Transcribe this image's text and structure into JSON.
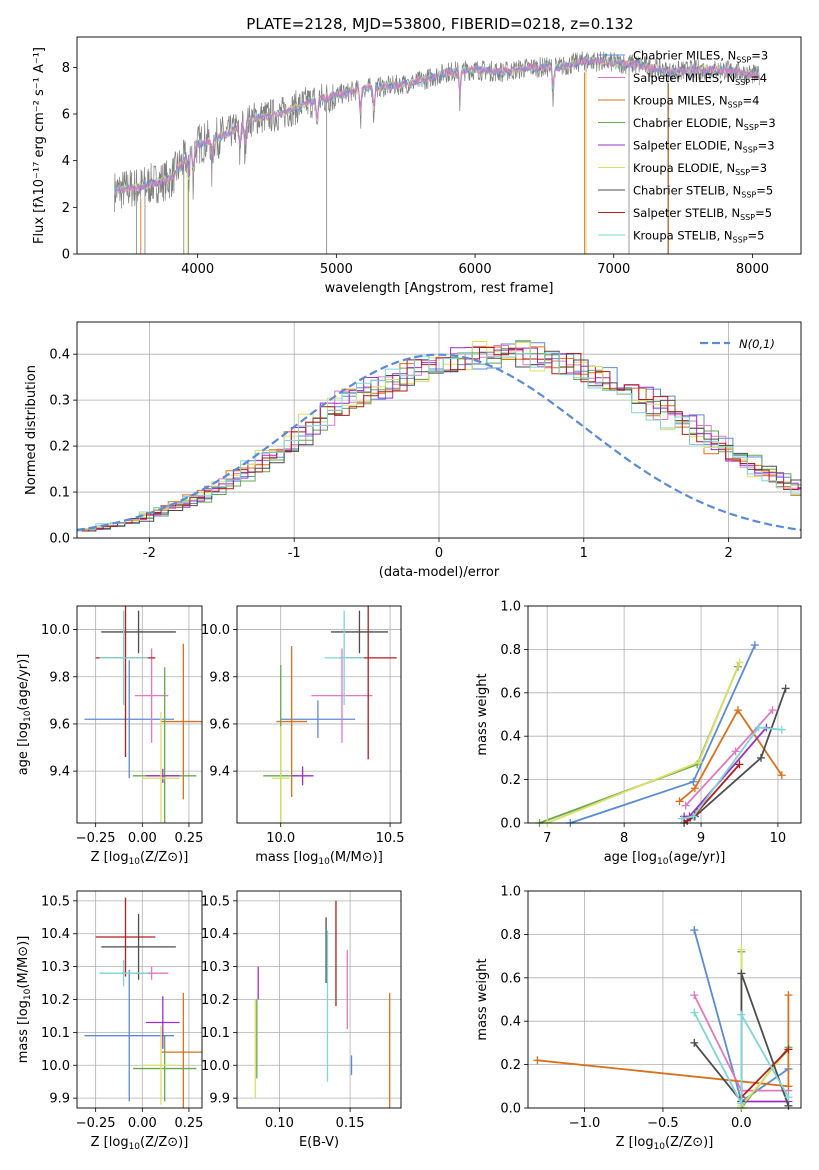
{
  "figure_title": "PLATE=2128, MJD=53800, FIBERID=0218, z=0.132",
  "colors": {
    "chabrier_miles": "#5b8bd6",
    "salpeter_miles": "#e377c2",
    "kroupa_miles": "#d9711d",
    "chabrier_elodie": "#6aa84f",
    "salpeter_elodie": "#9b30c8",
    "kroupa_elodie": "#dbe066",
    "chabrier_stelib": "#4d4d4d",
    "salpeter_stelib": "#b01e1e",
    "kroupa_stelib": "#7fd6d6",
    "data": "#808080",
    "normal": "#5b8bd6"
  },
  "legend_spectrum": [
    {
      "key": "chabrier_miles",
      "label": "Chabrier MILES, N",
      "sub": "SSP",
      "suffix": "=3"
    },
    {
      "key": "salpeter_miles",
      "label": "Salpeter MILES, N",
      "sub": "SSP",
      "suffix": "=4"
    },
    {
      "key": "kroupa_miles",
      "label": "Kroupa MILES, N",
      "sub": "SSP",
      "suffix": "=4"
    },
    {
      "key": "chabrier_elodie",
      "label": "Chabrier ELODIE, N",
      "sub": "SSP",
      "suffix": "=3"
    },
    {
      "key": "salpeter_elodie",
      "label": "Salpeter ELODIE, N",
      "sub": "SSP",
      "suffix": "=3"
    },
    {
      "key": "kroupa_elodie",
      "label": "Kroupa ELODIE, N",
      "sub": "SSP",
      "suffix": "=3"
    },
    {
      "key": "chabrier_stelib",
      "label": "Chabrier STELIB, N",
      "sub": "SSP",
      "suffix": "=5"
    },
    {
      "key": "salpeter_stelib",
      "label": "Salpeter STELIB, N",
      "sub": "SSP",
      "suffix": "=5"
    },
    {
      "key": "kroupa_stelib",
      "label": "Kroupa STELIB, N",
      "sub": "SSP",
      "suffix": "=5"
    }
  ],
  "chart_data": [
    {
      "id": "spectrum",
      "type": "line",
      "xlabel": "wavelength [Angstrom, rest frame]",
      "ylabel": "Flux [fλ10⁻¹⁷ erg cm⁻² s⁻¹ A⁻¹]",
      "xlim": [
        3130,
        8350
      ],
      "ylim": [
        0,
        9.3
      ],
      "xticks": [
        4000,
        5000,
        6000,
        7000,
        8000
      ],
      "yticks": [
        0,
        2,
        4,
        6,
        8
      ],
      "continuum": [
        [
          3400,
          2.7
        ],
        [
          3600,
          2.9
        ],
        [
          3800,
          3.2
        ],
        [
          3900,
          4.0
        ],
        [
          4000,
          4.7
        ],
        [
          4200,
          5.1
        ],
        [
          4400,
          5.8
        ],
        [
          4600,
          6.0
        ],
        [
          4800,
          6.5
        ],
        [
          5000,
          6.8
        ],
        [
          5200,
          7.1
        ],
        [
          5400,
          7.2
        ],
        [
          5600,
          7.4
        ],
        [
          5800,
          7.8
        ],
        [
          6000,
          7.9
        ],
        [
          6200,
          7.8
        ],
        [
          6400,
          8.0
        ],
        [
          6600,
          8.0
        ],
        [
          6800,
          8.3
        ],
        [
          7000,
          8.2
        ],
        [
          7200,
          8.1
        ],
        [
          7400,
          7.8
        ],
        [
          7600,
          7.9
        ],
        [
          7800,
          7.9
        ],
        [
          8000,
          7.7
        ],
        [
          8050,
          7.6
        ]
      ],
      "absorption_lines": [
        3934,
        3968,
        4102,
        4304,
        4341,
        4861,
        5175,
        5270,
        5890,
        6563
      ]
    },
    {
      "id": "residuals",
      "type": "line",
      "xlabel": "(data-model)/error",
      "ylabel": "Normed distribution",
      "xlim": [
        -2.5,
        2.5
      ],
      "ylim": [
        0,
        0.47
      ],
      "xticks": [
        -2,
        -1,
        0,
        1,
        2
      ],
      "yticks": [
        0,
        0.1,
        0.2,
        0.3,
        0.4
      ],
      "bin_width": 0.1,
      "legend": "N(0,1)",
      "series_base": [
        0.017,
        0.02,
        0.028,
        0.035,
        0.04,
        0.052,
        0.064,
        0.074,
        0.087,
        0.102,
        0.118,
        0.135,
        0.155,
        0.176,
        0.198,
        0.222,
        0.246,
        0.27,
        0.295,
        0.312,
        0.322,
        0.334,
        0.348,
        0.36,
        0.37,
        0.38,
        0.39,
        0.395,
        0.399,
        0.403,
        0.4,
        0.396,
        0.39,
        0.382,
        0.372,
        0.36,
        0.347,
        0.333,
        0.317,
        0.3,
        0.282,
        0.263,
        0.243,
        0.223,
        0.204,
        0.185,
        0.166,
        0.148,
        0.131,
        0.115,
        0.1,
        0.088,
        0.076,
        0.066,
        0.057,
        0.049,
        0.042,
        0.036,
        0.03,
        0.026
      ]
    },
    {
      "id": "age_vs_Z",
      "type": "scatter",
      "xlabel": "Z [log10(Z/Z⊙)]",
      "ylabel": "age  [log10(age/yr)]",
      "xlim": [
        -0.35,
        0.32
      ],
      "ylim": [
        9.18,
        10.1
      ],
      "xticks": [
        -0.25,
        0,
        0.25
      ],
      "xticklabels": [
        "−0.25",
        "0.00",
        "0.25"
      ],
      "yticks": [
        9.4,
        9.6,
        9.8,
        10.0
      ],
      "points": [
        {
          "key": "chabrier_miles",
          "x": -0.07,
          "y": 9.62,
          "xerr": 0.24,
          "yerr": 0.25
        },
        {
          "key": "salpeter_miles",
          "x": 0.05,
          "y": 9.72,
          "xerr": 0.09,
          "yerr": 0.2
        },
        {
          "key": "kroupa_miles",
          "x": 0.22,
          "y": 9.61,
          "xerr": 0.12,
          "yerr": 0.33
        },
        {
          "key": "chabrier_elodie",
          "x": 0.12,
          "y": 9.38,
          "xerr": 0.17,
          "yerr": 0.46
        },
        {
          "key": "salpeter_elodie",
          "x": 0.11,
          "y": 9.38,
          "xerr": 0.09,
          "yerr": 0.03
        },
        {
          "key": "kroupa_elodie",
          "x": 0.1,
          "y": 9.37,
          "xerr": 0.1,
          "yerr": 0.28
        },
        {
          "key": "chabrier_stelib",
          "x": -0.02,
          "y": 9.99,
          "xerr": 0.2,
          "yerr": 0.09
        },
        {
          "key": "salpeter_stelib",
          "x": -0.09,
          "y": 9.88,
          "xerr": 0.16,
          "yerr": 0.42
        },
        {
          "key": "kroupa_stelib",
          "x": -0.1,
          "y": 9.88,
          "xerr": 0.13,
          "yerr": 0.2
        }
      ]
    },
    {
      "id": "age_vs_mass",
      "type": "scatter",
      "xlabel": "mass [log10(M/M⊙)]",
      "ylabel": "",
      "xlim": [
        9.8,
        10.55
      ],
      "ylim": [
        9.18,
        10.1
      ],
      "xticks": [
        10.0,
        10.5
      ],
      "xticklabels": [
        "10.0",
        "10.5"
      ],
      "yticks": [
        9.4,
        9.6,
        9.8,
        10.0
      ],
      "points": [
        {
          "key": "chabrier_miles",
          "x": 10.17,
          "y": 9.62,
          "xerr": 0.17,
          "yerr": 0.08
        },
        {
          "key": "salpeter_miles",
          "x": 10.28,
          "y": 9.72,
          "xerr": 0.14,
          "yerr": 0.2
        },
        {
          "key": "kroupa_miles",
          "x": 10.05,
          "y": 9.61,
          "xerr": 0.07,
          "yerr": 0.32
        },
        {
          "key": "chabrier_elodie",
          "x": 10.0,
          "y": 9.38,
          "xerr": 0.08,
          "yerr": 0.47
        },
        {
          "key": "salpeter_elodie",
          "x": 10.1,
          "y": 9.38,
          "xerr": 0.05,
          "yerr": 0.04
        },
        {
          "key": "kroupa_elodie",
          "x": 10.0,
          "y": 9.37,
          "xerr": 0.04,
          "yerr": 0.22
        },
        {
          "key": "chabrier_stelib",
          "x": 10.36,
          "y": 9.99,
          "xerr": 0.13,
          "yerr": 0.09
        },
        {
          "key": "salpeter_stelib",
          "x": 10.4,
          "y": 9.88,
          "xerr": 0.13,
          "yerr": 0.43
        },
        {
          "key": "kroupa_stelib",
          "x": 10.29,
          "y": 9.88,
          "xerr": 0.09,
          "yerr": 0.2
        }
      ]
    },
    {
      "id": "weight_vs_age",
      "type": "line",
      "xlabel": "age  [log10(age/yr)]",
      "ylabel": "mass weight",
      "xlim": [
        6.75,
        10.3
      ],
      "ylim": [
        0,
        1
      ],
      "xticks": [
        7,
        8,
        9,
        10
      ],
      "yticks": [
        0,
        0.2,
        0.4,
        0.6,
        0.8,
        1.0
      ],
      "series": [
        {
          "key": "chabrier_miles",
          "points": [
            [
              7.3,
              0.0
            ],
            [
              8.9,
              0.19
            ],
            [
              9.7,
              0.82
            ]
          ]
        },
        {
          "key": "salpeter_miles",
          "points": [
            [
              8.8,
              0.08
            ],
            [
              9.45,
              0.33
            ],
            [
              9.93,
              0.52
            ]
          ]
        },
        {
          "key": "kroupa_miles",
          "points": [
            [
              8.72,
              0.1
            ],
            [
              8.92,
              0.16
            ],
            [
              9.48,
              0.52
            ],
            [
              10.05,
              0.22
            ]
          ]
        },
        {
          "key": "chabrier_elodie",
          "points": [
            [
              6.9,
              0.0
            ],
            [
              8.95,
              0.27
            ],
            [
              9.48,
              0.72
            ]
          ]
        },
        {
          "key": "salpeter_elodie",
          "points": [
            [
              8.78,
              0.03
            ],
            [
              8.85,
              0.03
            ],
            [
              9.85,
              0.44
            ]
          ]
        },
        {
          "key": "kroupa_elodie",
          "points": [
            [
              7.0,
              0.0
            ],
            [
              8.97,
              0.28
            ],
            [
              9.5,
              0.74
            ]
          ]
        },
        {
          "key": "chabrier_stelib",
          "points": [
            [
              8.78,
              0.0
            ],
            [
              8.92,
              0.03
            ],
            [
              9.78,
              0.3
            ],
            [
              10.1,
              0.62
            ]
          ]
        },
        {
          "key": "salpeter_stelib",
          "points": [
            [
              8.82,
              0.01
            ],
            [
              8.95,
              0.05
            ],
            [
              9.5,
              0.27
            ]
          ]
        },
        {
          "key": "kroupa_stelib",
          "points": [
            [
              8.75,
              0.02
            ],
            [
              8.9,
              0.03
            ],
            [
              9.75,
              0.44
            ],
            [
              10.05,
              0.43
            ]
          ]
        }
      ]
    },
    {
      "id": "mass_vs_Z",
      "type": "scatter",
      "xlabel": "Z [log10(Z/Z⊙)]",
      "ylabel": "mass [log10(M/M⊙)]",
      "xlim": [
        -0.35,
        0.32
      ],
      "ylim": [
        9.87,
        10.53
      ],
      "xticks": [
        -0.25,
        0,
        0.25
      ],
      "xticklabels": [
        "−0.25",
        "0.00",
        "0.25"
      ],
      "yticks": [
        9.9,
        10.0,
        10.1,
        10.2,
        10.3,
        10.4,
        10.5
      ],
      "points": [
        {
          "key": "chabrier_miles",
          "x": -0.07,
          "y": 10.09,
          "xerr": 0.24,
          "yerr": 0.2
        },
        {
          "key": "salpeter_miles",
          "x": 0.05,
          "y": 10.28,
          "xerr": 0.09,
          "yerr": 0.02
        },
        {
          "key": "kroupa_miles",
          "x": 0.22,
          "y": 10.04,
          "xerr": 0.12,
          "yerr": 0.18
        },
        {
          "key": "chabrier_elodie",
          "x": 0.12,
          "y": 9.99,
          "xerr": 0.17,
          "yerr": 0.1
        },
        {
          "key": "salpeter_elodie",
          "x": 0.11,
          "y": 10.13,
          "xerr": 0.09,
          "yerr": 0.08
        },
        {
          "key": "kroupa_elodie",
          "x": 0.1,
          "y": 10.0,
          "xerr": 0.1,
          "yerr": 0.12
        },
        {
          "key": "chabrier_stelib",
          "x": -0.02,
          "y": 10.36,
          "xerr": 0.2,
          "yerr": 0.1
        },
        {
          "key": "salpeter_stelib",
          "x": -0.09,
          "y": 10.39,
          "xerr": 0.16,
          "yerr": 0.12
        },
        {
          "key": "kroupa_stelib",
          "x": -0.1,
          "y": 10.28,
          "xerr": 0.13,
          "yerr": 0.04
        }
      ]
    },
    {
      "id": "mass_vs_ebv",
      "type": "scatter",
      "xlabel": "E(B-V)",
      "ylabel": "",
      "xlim": [
        0.07,
        0.186
      ],
      "ylim": [
        9.87,
        10.53
      ],
      "xticks": [
        0.1,
        0.15
      ],
      "xticklabels": [
        "0.10",
        "0.15"
      ],
      "yticks": [
        9.9,
        10.0,
        10.1,
        10.2,
        10.3,
        10.4,
        10.5
      ],
      "points": [
        {
          "key": "chabrier_miles",
          "x": 0.151,
          "y": 10.0,
          "xerr": 0,
          "yerr": 0.03
        },
        {
          "key": "salpeter_miles",
          "x": 0.148,
          "y": 10.23,
          "xerr": 0,
          "yerr": 0.12
        },
        {
          "key": "kroupa_miles",
          "x": 0.178,
          "y": 10.02,
          "xerr": 0,
          "yerr": 0.2
        },
        {
          "key": "chabrier_elodie",
          "x": 0.084,
          "y": 10.08,
          "xerr": 0,
          "yerr": 0.12
        },
        {
          "key": "salpeter_elodie",
          "x": 0.085,
          "y": 10.25,
          "xerr": 0,
          "yerr": 0.05
        },
        {
          "key": "kroupa_elodie",
          "x": 0.083,
          "y": 10.05,
          "xerr": 0,
          "yerr": 0.15
        },
        {
          "key": "chabrier_stelib",
          "x": 0.133,
          "y": 10.35,
          "xerr": 0,
          "yerr": 0.1
        },
        {
          "key": "salpeter_stelib",
          "x": 0.14,
          "y": 10.34,
          "xerr": 0,
          "yerr": 0.16
        },
        {
          "key": "kroupa_stelib",
          "x": 0.134,
          "y": 10.18,
          "xerr": 0,
          "yerr": 0.23
        }
      ]
    },
    {
      "id": "weight_vs_Z",
      "type": "line",
      "xlabel": "Z [log10(Z/Z⊙)]",
      "ylabel": "mass weight",
      "xlim": [
        -1.36,
        0.38
      ],
      "ylim": [
        0,
        1
      ],
      "xticks": [
        -1.0,
        -0.5,
        0.0
      ],
      "xticklabels": [
        "−1.0",
        "−0.5",
        "0.0"
      ],
      "yticks": [
        0,
        0.2,
        0.4,
        0.6,
        0.8,
        1.0
      ],
      "series": [
        {
          "key": "chabrier_miles",
          "points": [
            [
              -0.3,
              0.82
            ],
            [
              0.0,
              0.03
            ],
            [
              0.3,
              0.18
            ]
          ]
        },
        {
          "key": "salpeter_miles",
          "points": [
            [
              -0.3,
              0.52
            ],
            [
              0.0,
              0.08
            ],
            [
              0.3,
              0.08
            ]
          ]
        },
        {
          "key": "kroupa_miles",
          "points": [
            [
              -1.3,
              0.22
            ],
            [
              0.3,
              0.1
            ],
            [
              0.3,
              0.52
            ]
          ]
        },
        {
          "key": "chabrier_elodie",
          "points": [
            [
              0.0,
              0.72
            ],
            [
              0.0,
              0.0
            ],
            [
              0.3,
              0.28
            ]
          ]
        },
        {
          "key": "salpeter_elodie",
          "points": [
            [
              0.0,
              0.03
            ],
            [
              0.3,
              0.03
            ]
          ]
        },
        {
          "key": "kroupa_elodie",
          "points": [
            [
              0.0,
              0.73
            ],
            [
              0.0,
              0.01
            ],
            [
              0.3,
              0.27
            ]
          ]
        },
        {
          "key": "chabrier_stelib",
          "points": [
            [
              -0.3,
              0.3
            ],
            [
              0.0,
              0.03
            ],
            [
              0.0,
              0.62
            ],
            [
              0.3,
              0.01
            ]
          ]
        },
        {
          "key": "salpeter_stelib",
          "points": [
            [
              0.0,
              0.05
            ],
            [
              0.3,
              0.27
            ]
          ]
        },
        {
          "key": "kroupa_stelib",
          "points": [
            [
              -0.3,
              0.44
            ],
            [
              0.0,
              0.02
            ],
            [
              0.0,
              0.43
            ],
            [
              0.3,
              0.05
            ]
          ]
        }
      ]
    }
  ]
}
